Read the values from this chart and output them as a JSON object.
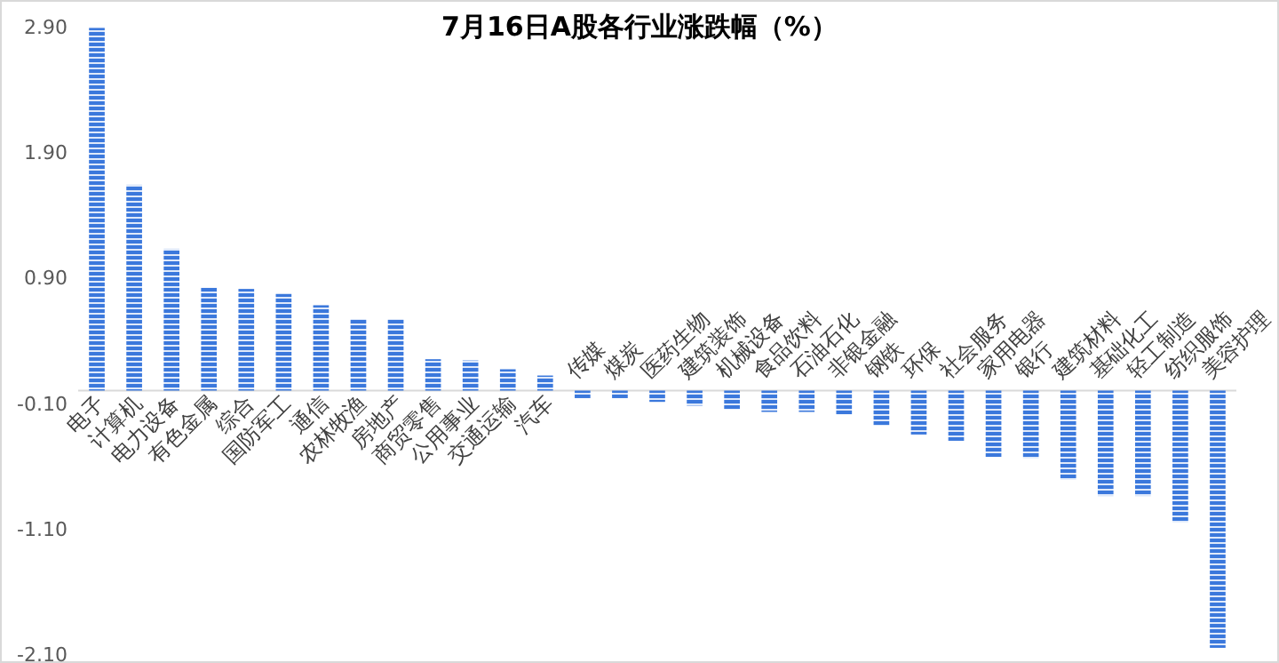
{
  "chart_data": {
    "type": "bar",
    "title": "7月16日A股各行业涨跌幅（%）",
    "categories": [
      "电子",
      "计算机",
      "电力设备",
      "有色金属",
      "综合",
      "国防军工",
      "通信",
      "农林牧渔",
      "房地产",
      "商贸零售",
      "公用事业",
      "交通运输",
      "汽车",
      "传媒",
      "煤炭",
      "医药生物",
      "建筑装饰",
      "机械设备",
      "食品饮料",
      "石油石化",
      "非银金融",
      "钢铁",
      "环保",
      "社会服务",
      "家用电器",
      "银行",
      "建筑材料",
      "基础化工",
      "轻工制造",
      "纺织服饰",
      "美容护理"
    ],
    "values": [
      2.89,
      1.64,
      1.13,
      0.82,
      0.81,
      0.77,
      0.68,
      0.57,
      0.57,
      0.25,
      0.24,
      0.17,
      0.12,
      -0.06,
      -0.06,
      -0.09,
      -0.12,
      -0.15,
      -0.17,
      -0.17,
      -0.19,
      -0.28,
      -0.35,
      -0.4,
      -0.53,
      -0.54,
      -0.71,
      -0.84,
      -0.84,
      -1.05,
      -2.05
    ],
    "color": "#3b78dc",
    "ylim": [
      -2.1,
      2.9
    ],
    "yticks": [
      {
        "value": -2.1,
        "label": "-2.10"
      },
      {
        "value": -1.1,
        "label": "-1.10"
      },
      {
        "value": -0.1,
        "label": "-0.10"
      },
      {
        "value": 0.9,
        "label": "0.90"
      },
      {
        "value": 1.9,
        "label": "1.90"
      },
      {
        "value": 2.9,
        "label": "2.90"
      }
    ],
    "grid": false
  }
}
